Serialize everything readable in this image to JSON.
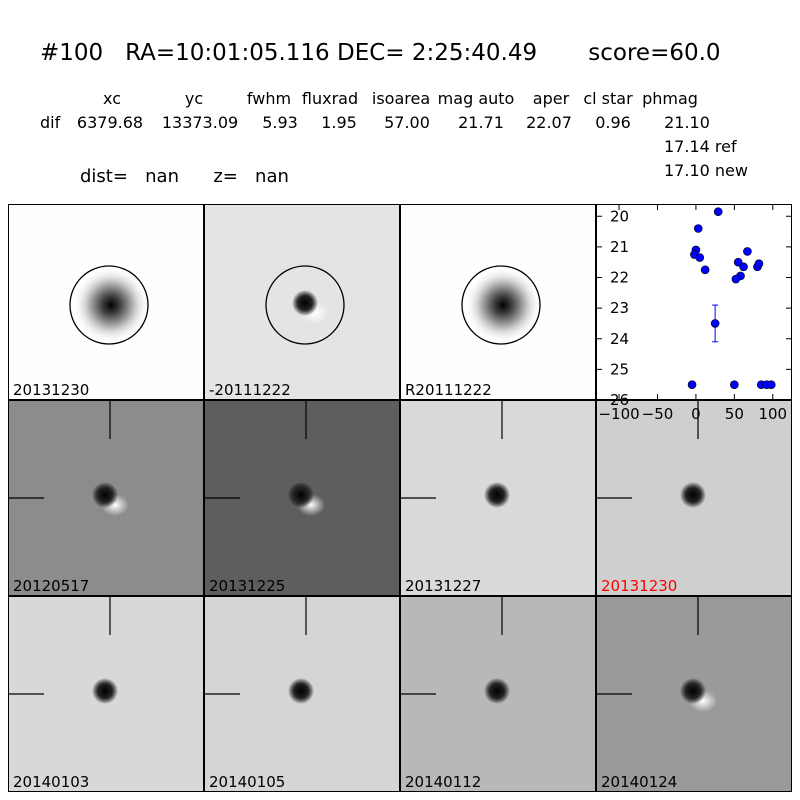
{
  "header": {
    "title": "#100   RA=10:01:05.116 DEC= 2:25:40.49       score=60.0",
    "columns": [
      "xc",
      "yc",
      "fwhm",
      "fluxrad",
      "isoarea",
      "mag auto",
      "aper",
      "cl star",
      "phmag"
    ],
    "row_label": "dif",
    "row_values": [
      "6379.68",
      "13373.09",
      "5.93",
      "1.95",
      "57.00",
      "21.71",
      "22.07",
      "0.96",
      "21.10"
    ],
    "phmag_ref": "17.14 ref",
    "phmag_new": "17.10 new",
    "dist_label": "dist=",
    "dist_value": "nan",
    "z_label": "z=",
    "z_value": "nan"
  },
  "panels": [
    {
      "label": "20131230",
      "label_color": "#000000",
      "bg": "#fefefe",
      "kind": "star",
      "circle": true,
      "crosshair": false
    },
    {
      "label": "-20111222",
      "label_color": "#000000",
      "bg": "#e4e4e4",
      "kind": "dipole",
      "circle": true,
      "crosshair": false
    },
    {
      "label": "R20111222",
      "label_color": "#000000",
      "bg": "#fefefe",
      "kind": "star",
      "circle": true,
      "crosshair": false
    },
    {
      "label": "20120517",
      "label_color": "#000000",
      "bg": "#8c8c8c",
      "kind": "dipole",
      "circle": false,
      "crosshair": true
    },
    {
      "label": "20131225",
      "label_color": "#000000",
      "bg": "#5e5e5e",
      "kind": "dipole",
      "circle": false,
      "crosshair": true
    },
    {
      "label": "20131227",
      "label_color": "#000000",
      "bg": "#d9d9d9",
      "kind": "blob",
      "circle": false,
      "crosshair": true
    },
    {
      "label": "20131230",
      "label_color": "#ff0000",
      "bg": "#cfcfcf",
      "kind": "blob",
      "circle": false,
      "crosshair": true
    },
    {
      "label": "20140103",
      "label_color": "#000000",
      "bg": "#d8d8d8",
      "kind": "blob",
      "circle": false,
      "crosshair": true
    },
    {
      "label": "20140105",
      "label_color": "#000000",
      "bg": "#d5d5d5",
      "kind": "blob",
      "circle": false,
      "crosshair": true
    },
    {
      "label": "20140112",
      "label_color": "#000000",
      "bg": "#b8b8b8",
      "kind": "blob",
      "circle": false,
      "crosshair": true
    },
    {
      "label": "20140124",
      "label_color": "#000000",
      "bg": "#9a9a9a",
      "kind": "dipole",
      "circle": false,
      "crosshair": true
    }
  ],
  "chart_data": {
    "type": "scatter",
    "title": "",
    "xlabel": "",
    "ylabel": "",
    "xlim": [
      -130,
      125
    ],
    "ylim": [
      26,
      19.6
    ],
    "y_inverted": true,
    "xticks": [
      -100,
      -50,
      0,
      50,
      100
    ],
    "yticks": [
      20,
      21,
      22,
      23,
      24,
      25,
      26
    ],
    "marker_color": "#0000ff",
    "points": [
      {
        "x": 29,
        "y": 19.85
      },
      {
        "x": 3,
        "y": 20.4
      },
      {
        "x": 0,
        "y": 21.1
      },
      {
        "x": -2,
        "y": 21.25
      },
      {
        "x": 5,
        "y": 21.35
      },
      {
        "x": 12,
        "y": 21.75
      },
      {
        "x": 67,
        "y": 21.15
      },
      {
        "x": 55,
        "y": 21.5
      },
      {
        "x": 62,
        "y": 21.65
      },
      {
        "x": 80,
        "y": 21.65
      },
      {
        "x": 82,
        "y": 21.55
      },
      {
        "x": 58,
        "y": 21.95
      },
      {
        "x": 52,
        "y": 22.05
      },
      {
        "x": 25,
        "y": 23.5,
        "yerr": 0.6
      },
      {
        "x": -5,
        "y": 25.5
      },
      {
        "x": 50,
        "y": 25.5
      },
      {
        "x": 85,
        "y": 25.5
      },
      {
        "x": 92,
        "y": 25.5
      },
      {
        "x": 98,
        "y": 25.5
      }
    ]
  }
}
